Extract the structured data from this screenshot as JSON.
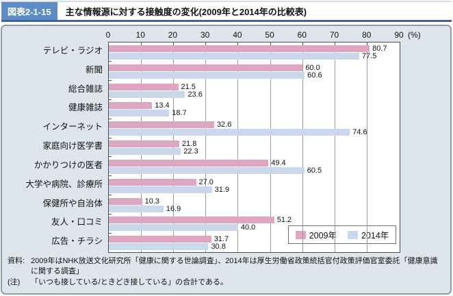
{
  "header": {
    "figure_label": "図表2-1-15",
    "title": "主な情報源に対する接触度の変化(2009年と2014年の比較表)"
  },
  "chart_data": {
    "type": "bar",
    "orientation": "horizontal",
    "title": "主な情報源に対する接触度の変化(2009年と2014年の比較表)",
    "unit_label": "(%)",
    "xlim": [
      0,
      90
    ],
    "x_ticks": [
      0,
      10,
      20,
      30,
      40,
      50,
      60,
      70,
      80,
      90
    ],
    "grid": "vertical",
    "legend_position": "inside-bottom-right",
    "categories": [
      "テレビ・ラジオ",
      "新聞",
      "総合雑誌",
      "健康雑誌",
      "インターネット",
      "家庭向け医学書",
      "かかりつけの医者",
      "大学や病院、診療所",
      "保健所や自治体",
      "友人・口コミ",
      "広告・チラシ"
    ],
    "series": [
      {
        "name": "2009年",
        "color": "#dfa6c2",
        "values": [
          80.7,
          60.0,
          21.5,
          13.4,
          32.6,
          21.8,
          49.4,
          27.0,
          10.3,
          51.2,
          31.7
        ]
      },
      {
        "name": "2014年",
        "color": "#cbd7ed",
        "values": [
          77.5,
          60.6,
          23.6,
          18.7,
          74.6,
          22.3,
          60.5,
          31.9,
          16.9,
          40.0,
          30.8
        ]
      }
    ]
  },
  "notes": {
    "source_label": "資料:",
    "source_text": "2009年はNHK放送文化研究所「健康に関する世論調査」、2014年は厚生労働省政策統括官付政策評価官室委託「健康意識に関する調査」",
    "note_label": "(注)",
    "note_text": "「いつも接している/ときどき接している」の合計である。"
  },
  "colors": {
    "series_2009": "#dfa6c2",
    "series_2014": "#cbd7ed",
    "panel_background": "#dfe5ec",
    "panel_border": "#8e9dac",
    "badge_background": "#5d8dc6",
    "header_underline": "#3f639c",
    "plot_border": "#4d4d4d",
    "gridline": "#9a9a9a"
  }
}
